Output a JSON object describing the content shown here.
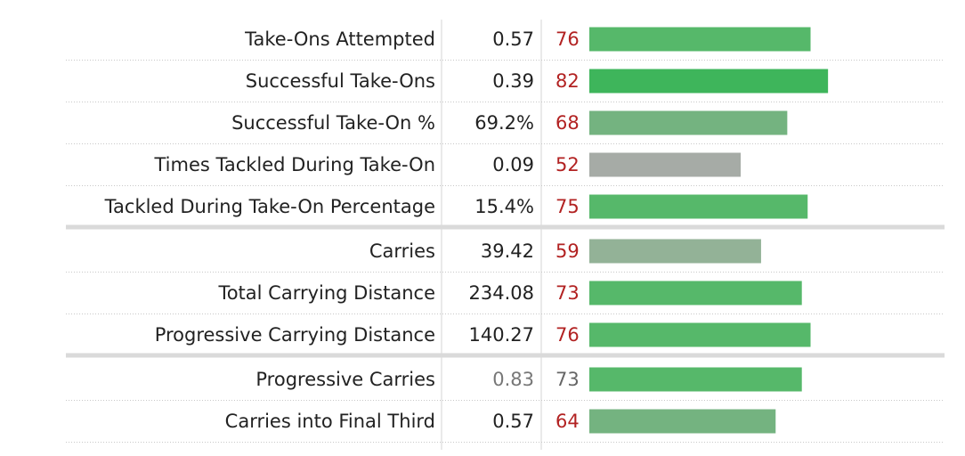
{
  "chart_data": {
    "type": "bar",
    "xlim": [
      0,
      100
    ],
    "colors": {
      "high": "#3eb55b",
      "good": "#56b86a",
      "fair": "#74b380",
      "mid": "#93b297",
      "neutral": "#a6aba6",
      "percentile_text": "#b22222",
      "percentile_text_muted": "#666666",
      "value_text": "#222222",
      "value_text_muted": "#777777"
    },
    "groups": [
      {
        "rows": [
          {
            "stat": "Take-Ons Attempted",
            "value": "0.57",
            "percentile": 76,
            "color": "good"
          },
          {
            "stat": "Successful Take-Ons",
            "value": "0.39",
            "percentile": 82,
            "color": "high"
          },
          {
            "stat": "Successful Take-On %",
            "value": "69.2%",
            "percentile": 68,
            "color": "fair"
          },
          {
            "stat": "Times Tackled During Take-On",
            "value": "0.09",
            "percentile": 52,
            "color": "neutral"
          },
          {
            "stat": "Tackled During Take-On Percentage",
            "value": "15.4%",
            "percentile": 75,
            "color": "good"
          }
        ]
      },
      {
        "rows": [
          {
            "stat": "Carries",
            "value": "39.42",
            "percentile": 59,
            "color": "mid"
          },
          {
            "stat": "Total Carrying Distance",
            "value": "234.08",
            "percentile": 73,
            "color": "good"
          },
          {
            "stat": "Progressive Carrying Distance",
            "value": "140.27",
            "percentile": 76,
            "color": "good"
          }
        ]
      },
      {
        "rows": [
          {
            "stat": "Progressive Carries",
            "value": "0.83",
            "percentile": 73,
            "color": "good",
            "muted": true
          },
          {
            "stat": "Carries into Final Third",
            "value": "0.57",
            "percentile": 64,
            "color": "fair"
          }
        ]
      }
    ]
  }
}
